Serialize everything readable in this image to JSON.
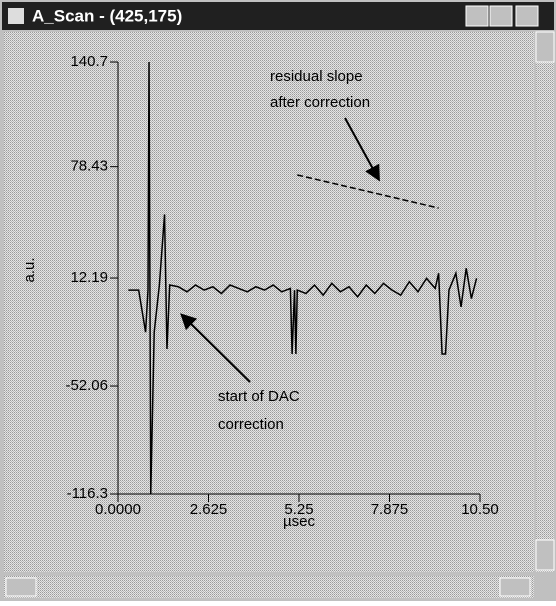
{
  "window": {
    "title": "A_Scan - (425,175)"
  },
  "chart_data": {
    "type": "line",
    "xlabel": "µsec",
    "ylabel": "a.u.",
    "xlim": [
      0,
      10.5
    ],
    "ylim": [
      -116.3,
      140.7
    ],
    "xticks": [
      {
        "value": 0,
        "label": "0.0000"
      },
      2.625,
      5.25,
      7.875,
      {
        "value": 10.5,
        "label": "10.50"
      }
    ],
    "yticks": [
      140.7,
      78.43,
      12.19,
      -52.06,
      -116.3
    ],
    "series": [
      {
        "color": "#000000",
        "style": "solid",
        "x": [
          0.3,
          0.6,
          0.8,
          0.87,
          0.9,
          0.95,
          1.05,
          1.2,
          1.35,
          1.42,
          1.5,
          1.75,
          2.0,
          2.25,
          2.5,
          2.75,
          3.0,
          3.25,
          3.5,
          3.75,
          4.0,
          4.25,
          4.5,
          4.75,
          5.0,
          5.05,
          5.12,
          5.16,
          5.2,
          5.45,
          5.7,
          5.95,
          6.2,
          6.45,
          6.7,
          6.95,
          7.2,
          7.45,
          7.7,
          7.95,
          8.2,
          8.45,
          8.7,
          8.95,
          9.2,
          9.3,
          9.4,
          9.5,
          9.6,
          9.8,
          9.95,
          10.1,
          10.25,
          10.4
        ],
        "values": [
          5,
          5,
          -20,
          5,
          140.7,
          -116.3,
          -20,
          8,
          50,
          -30,
          8,
          7,
          4,
          8,
          5,
          7,
          3,
          8,
          6,
          4,
          7,
          5,
          8,
          4,
          6,
          -33,
          5,
          -33,
          5,
          3,
          8,
          2,
          9,
          4,
          7,
          1,
          8,
          3,
          9,
          5,
          2,
          10,
          4,
          12,
          6,
          15,
          -33,
          -33,
          5,
          15,
          -5,
          18,
          0,
          12
        ]
      },
      {
        "color": "#000000",
        "style": "dashed",
        "x": [
          5.2,
          9.3
        ],
        "values": [
          73.5,
          53.8
        ]
      }
    ],
    "annotations": [
      "residual slope",
      "after correction",
      "start of DAC",
      "correction"
    ]
  }
}
